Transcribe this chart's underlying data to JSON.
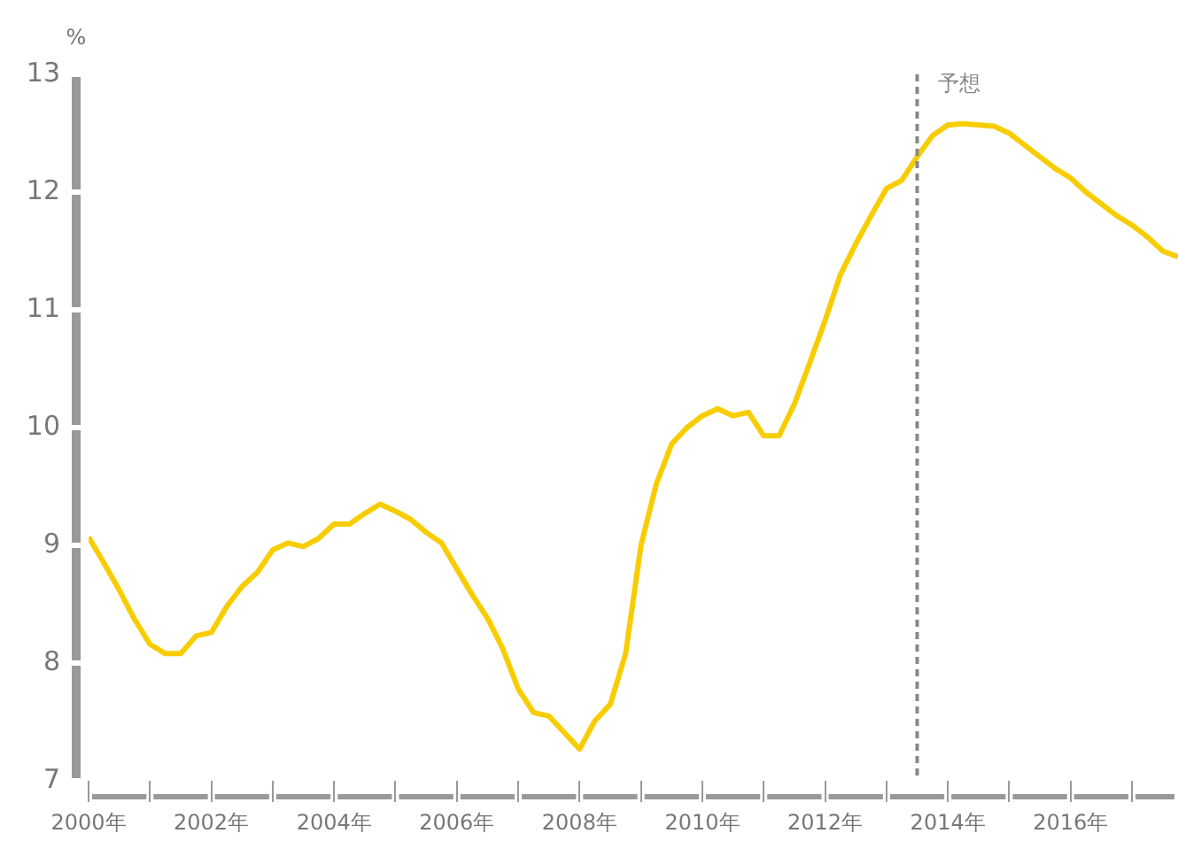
{
  "chart_data": {
    "type": "line",
    "ylabel": "%",
    "x": [
      2000,
      2000.25,
      2000.5,
      2000.75,
      2001,
      2001.25,
      2001.5,
      2001.75,
      2002,
      2002.25,
      2002.5,
      2002.75,
      2003,
      2003.25,
      2003.5,
      2003.75,
      2004,
      2004.25,
      2004.5,
      2004.75,
      2005,
      2005.25,
      2005.5,
      2005.75,
      2006,
      2006.25,
      2006.5,
      2006.75,
      2007,
      2007.25,
      2007.5,
      2007.75,
      2008,
      2008.25,
      2008.5,
      2008.75,
      2009,
      2009.25,
      2009.5,
      2009.75,
      2010,
      2010.25,
      2010.5,
      2010.75,
      2011,
      2011.25,
      2011.5,
      2011.75,
      2012,
      2012.25,
      2012.5,
      2012.75,
      2013,
      2013.25,
      2013.5,
      2013.75,
      2014,
      2014.25,
      2014.5,
      2014.75,
      2015,
      2015.25,
      2015.5,
      2015.75,
      2016,
      2016.25,
      2016.5,
      2016.75,
      2017,
      2017.25,
      2017.5,
      2017.75
    ],
    "series": [
      {
        "color": "#f8cd00",
        "values": [
          9.07,
          8.85,
          8.62,
          8.37,
          8.16,
          8.08,
          8.08,
          8.23,
          8.26,
          8.48,
          8.65,
          8.77,
          8.96,
          9.02,
          8.99,
          9.06,
          9.18,
          9.18,
          9.27,
          9.35,
          9.29,
          9.22,
          9.11,
          9.02,
          8.8,
          8.58,
          8.38,
          8.12,
          7.78,
          7.58,
          7.55,
          7.41,
          7.27,
          7.51,
          7.65,
          8.08,
          9.0,
          9.52,
          9.86,
          10.0,
          10.1,
          10.16,
          10.1,
          10.13,
          9.93,
          9.93,
          10.2,
          10.55,
          10.91,
          11.3,
          11.56,
          11.8,
          12.03,
          12.1,
          12.3,
          12.48,
          12.57,
          12.58,
          12.57,
          12.56,
          12.5,
          12.4,
          12.3,
          12.2,
          12.12,
          12.0,
          11.9,
          11.8,
          11.72,
          11.62,
          11.5,
          11.45
        ]
      }
    ],
    "xlim": [
      2000,
      2017.75
    ],
    "xticks": [
      {
        "value": 2000,
        "label": "2000年"
      },
      {
        "value": 2001,
        "label": null
      },
      {
        "value": 2002,
        "label": "2002年"
      },
      {
        "value": 2003,
        "label": null
      },
      {
        "value": 2004,
        "label": "2004年"
      },
      {
        "value": 2005,
        "label": null
      },
      {
        "value": 2006,
        "label": "2006年"
      },
      {
        "value": 2007,
        "label": null
      },
      {
        "value": 2008,
        "label": "2008年"
      },
      {
        "value": 2009,
        "label": null
      },
      {
        "value": 2010,
        "label": "2010年"
      },
      {
        "value": 2011,
        "label": null
      },
      {
        "value": 2012,
        "label": "2012年"
      },
      {
        "value": 2013,
        "label": null
      },
      {
        "value": 2014,
        "label": "2014年"
      },
      {
        "value": 2015,
        "label": null
      },
      {
        "value": 2016,
        "label": "2016年"
      },
      {
        "value": 2017,
        "label": null
      }
    ],
    "ylim": [
      7,
      13
    ],
    "yticks": [
      7,
      8,
      9,
      10,
      11,
      12,
      13
    ],
    "ref_lines": [
      {
        "axis": "x",
        "value": 2013.5,
        "label": "予想",
        "color": "#888888",
        "line_style": "dashed"
      }
    ],
    "grid": false,
    "legend": false,
    "marker": "none",
    "line_style": "solid"
  }
}
